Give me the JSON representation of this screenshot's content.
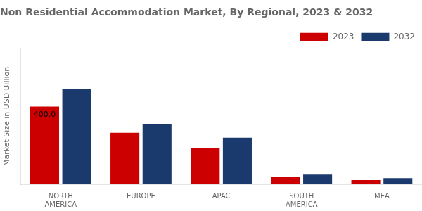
{
  "chart_data": {
    "type": "bar",
    "title": "Non Residential Accommodation Market, By Regional, 2023 & 2032",
    "ylabel": "Market Size in USD Billion",
    "categories": [
      "NORTH\nAMERICA",
      "EUROPE",
      "APAC",
      "SOUTH\nAMERICA",
      "MEA"
    ],
    "series": [
      {
        "name": "2023",
        "color": "#cc0000",
        "values": [
          400,
          265,
          185,
          38,
          22
        ]
      },
      {
        "name": "2032",
        "color": "#1a3a6e",
        "values": [
          490,
          310,
          240,
          50,
          32
        ]
      }
    ],
    "ylim": [
      0,
      700
    ],
    "yticks": [],
    "tick_labels": "x",
    "grid": false,
    "legend": "upper right",
    "annotations": [
      {
        "text": "400.0",
        "category": "NORTH\nAMERICA",
        "series": "2023"
      }
    ]
  }
}
